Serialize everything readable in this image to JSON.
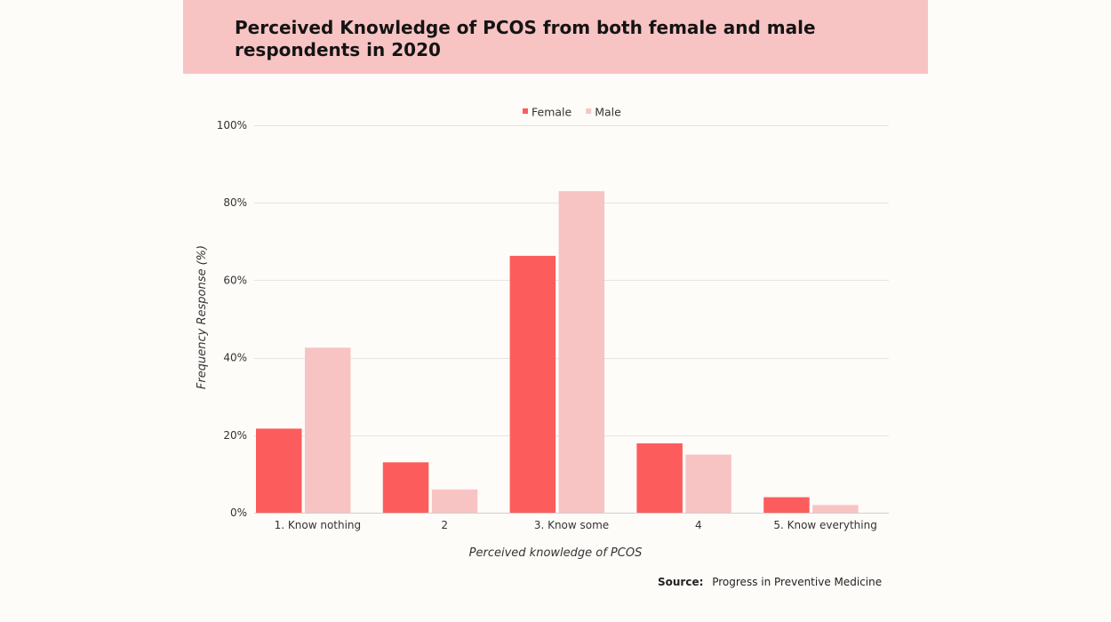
{
  "chart_data": {
    "type": "bar",
    "title": "Perceived Knowledge of PCOS from both female and male respondents in 2020",
    "xlabel": "Perceived knowledge of PCOS",
    "ylabel": "Frequency Response (%)",
    "categories": [
      "1. Know nothing",
      "2",
      "3. Know some",
      "4",
      "5. Know everything"
    ],
    "series": [
      {
        "name": "Female",
        "color": "#fd5c5c",
        "values": [
          21.7,
          13.0,
          66.3,
          17.9,
          4.0
        ]
      },
      {
        "name": "Male",
        "color": "#f8c4c3",
        "values": [
          42.6,
          6.0,
          83.0,
          15.0,
          2.0
        ]
      }
    ],
    "ylim": [
      0,
      100
    ],
    "yticks": [
      0,
      20,
      40,
      60,
      80,
      100
    ],
    "ytick_labels": [
      "0%",
      "20%",
      "40%",
      "60%",
      "80%",
      "100%"
    ],
    "grid": true,
    "legend_position": "top-center"
  },
  "source": {
    "label": "Source:",
    "value": "Progress in Preventive Medicine"
  }
}
